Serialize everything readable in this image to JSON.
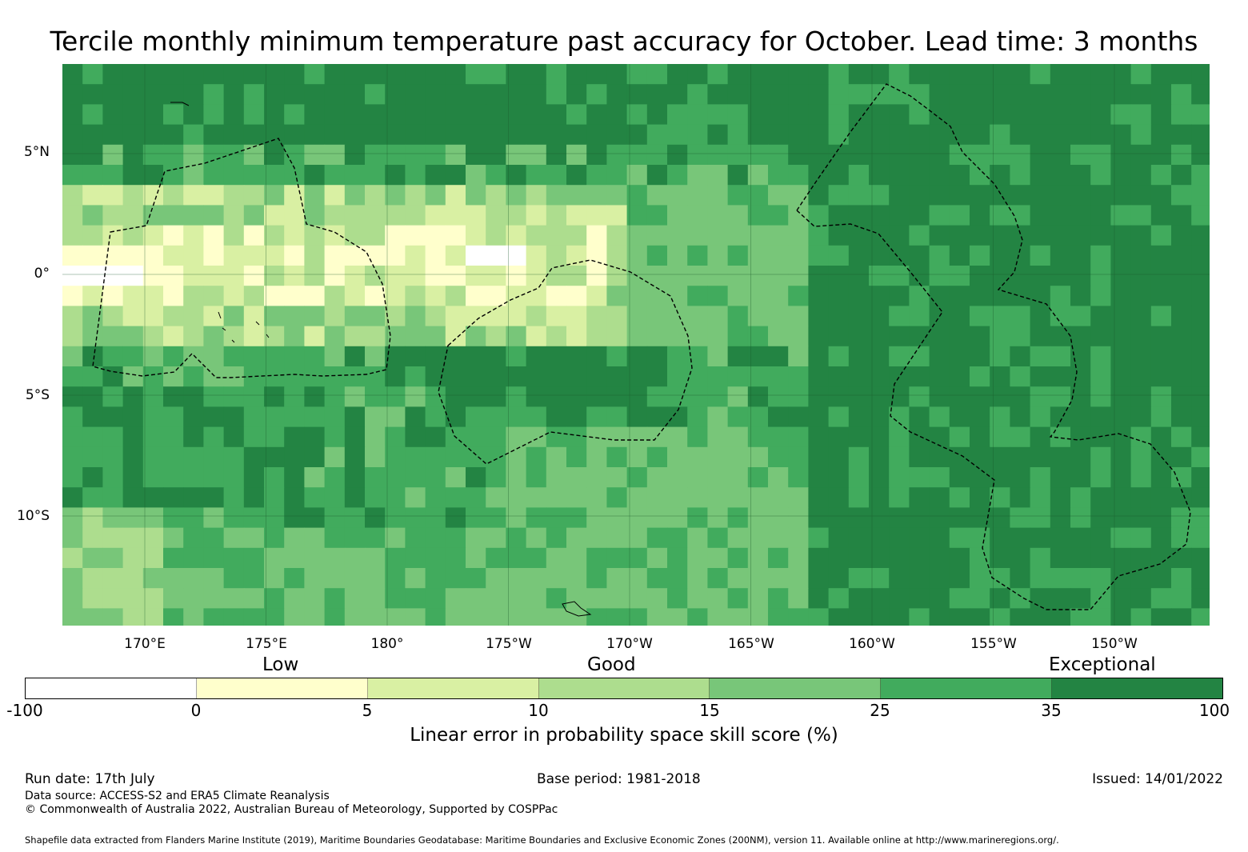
{
  "title": "Tercile monthly minimum temperature past accuracy for October. Lead time: 3 months",
  "lat_labels": [
    "5°N",
    "0°",
    "5°S",
    "10°S"
  ],
  "lon_labels": [
    "170°E",
    "175°E",
    "180°",
    "175°W",
    "170°W",
    "165°W",
    "160°W",
    "155°W",
    "150°W"
  ],
  "colorbar": {
    "categories": [
      "Low",
      "Good",
      "Exceptional"
    ],
    "ticks": [
      "-100",
      "0",
      "5",
      "10",
      "15",
      "25",
      "35",
      "100"
    ],
    "colors": [
      "#ffffff",
      "#ffffcc",
      "#d9f0a3",
      "#addd8e",
      "#78c679",
      "#41ab5d",
      "#238443"
    ],
    "label": "Linear error in probability space skill score (%)"
  },
  "footer": {
    "run_date": "Run date: 17th July",
    "base_period": "Base period: 1981-2018",
    "issued": "Issued: 14/01/2022",
    "data_source": "Data source: ACCESS-S2 and ERA5 Climate Reanalysis",
    "copyright": "© Commonwealth of Australia 2022, Australian Bureau of Meteorology, Supported by COSPPac",
    "shapefile": "Shapefile data extracted from Flanders Marine Institute (2019), Maritime Boundaries Geodatabase: Maritime Boundaries and Exclusive Economic Zones (200NM), version 11. Available online at http://www.marineregions.org/."
  }
}
